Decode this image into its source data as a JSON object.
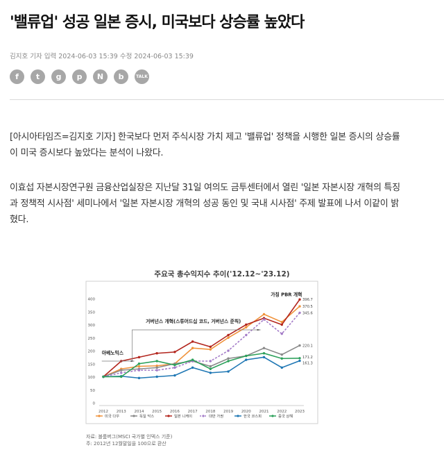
{
  "article": {
    "title": "'밸류업' 성공 일본 증시, 미국보다 상승률 높았다",
    "byline": "김지호 기자 입력 2024-06-03 15:39 수정 2024-06-03 15:39",
    "share_icons": [
      {
        "name": "facebook-icon",
        "glyph": "f"
      },
      {
        "name": "twitter-icon",
        "glyph": "t"
      },
      {
        "name": "kakaostory-icon",
        "glyph": "g"
      },
      {
        "name": "pinterest-icon",
        "glyph": "p"
      },
      {
        "name": "naver-icon",
        "glyph": "N"
      },
      {
        "name": "band-icon",
        "glyph": "b"
      },
      {
        "name": "kakaotalk-icon",
        "glyph": "TALK"
      }
    ],
    "p1_line1": "[아시아타임즈=김지호 기자] 한국보다 먼저 주식시장 가치 제고 '밸류업' 정책을 시행한 일본 증시의 상승률",
    "p1_line2": "이 미국 증시보다 높았다는 분석이 나왔다.",
    "p2_line1": "이효섭 자본시장연구원 금융산업실장은 지난달 31일 여의도 금투센터에서 열린 '일본 자본시장 개혁의 특징",
    "p2_line2": "과 정책적 시사점' 세미나에서 '일본 자본시장 개혁의 성공 동인 및 국내 시사점' 주제 발표에 나서 이같이 밝",
    "p2_line3": "혔다."
  },
  "chart_data": {
    "type": "line",
    "title": "주요국 총수익지수 추이('12.12~'23.12)",
    "x": [
      2012,
      2013,
      2014,
      2015,
      2016,
      2017,
      2018,
      2019,
      2020,
      2021,
      2022,
      2023
    ],
    "ylim": [
      0,
      400
    ],
    "yticks": [
      0,
      50,
      100,
      150,
      200,
      250,
      300,
      350,
      400
    ],
    "grid": false,
    "legend": "bottom",
    "series": [
      {
        "name": "미국 다우",
        "color": "#f0923a",
        "dash": false,
        "values": [
          100,
          130,
          140,
          142,
          150,
          210,
          205,
          250,
          290,
          340,
          310,
          370.5
        ]
      },
      {
        "name": "독일 닥스",
        "color": "#8a8a8a",
        "dash": false,
        "values": [
          100,
          125,
          130,
          135,
          150,
          160,
          140,
          170,
          180,
          210,
          185,
          220.1
        ]
      },
      {
        "name": "일본 니케이",
        "color": "#b3261e",
        "dash": false,
        "values": [
          100,
          160,
          175,
          190,
          195,
          235,
          215,
          260,
          300,
          325,
          300,
          396.7
        ]
      },
      {
        "name": "대만 가권",
        "color": "#a47cc8",
        "dash": true,
        "values": [
          100,
          115,
          125,
          125,
          135,
          160,
          160,
          200,
          260,
          320,
          265,
          345.6
        ]
      },
      {
        "name": "한국 코스피",
        "color": "#1f77b4",
        "dash": false,
        "values": [
          100,
          102,
          95,
          100,
          105,
          135,
          115,
          120,
          165,
          175,
          135,
          161.3
        ]
      },
      {
        "name": "중국 상해",
        "color": "#2ca05a",
        "dash": false,
        "values": [
          100,
          100,
          150,
          160,
          145,
          165,
          130,
          160,
          180,
          190,
          170,
          171.2
        ]
      }
    ],
    "end_labels": [
      "396.7",
      "370.5",
      "345.6",
      "220.1",
      "171.2",
      "161.3"
    ],
    "annotations": [
      {
        "text": "아베노믹스",
        "x": 2013,
        "y": 172
      },
      {
        "text": "거버넌스 개혁(스튜어드십 코드, 거버넌스 준칙)",
        "x": 2015,
        "y": 293
      },
      {
        "text": "가칭 PBR 개혁",
        "x": 2023,
        "y": 408
      }
    ],
    "source_line1": "자료: 블룸버그(MSCI 국가별 인덱스 기준)",
    "source_line2": "주: 2012년 12월말일을 100으로 환산"
  }
}
